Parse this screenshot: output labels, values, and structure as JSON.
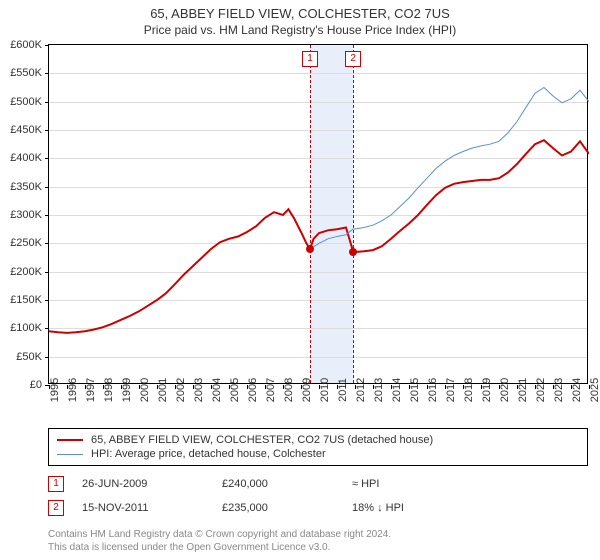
{
  "title": "65, ABBEY FIELD VIEW, COLCHESTER, CO2 7US",
  "subtitle": "Price paid vs. HM Land Registry's House Price Index (HPI)",
  "chart": {
    "type": "line",
    "x_domain": [
      1995,
      2025
    ],
    "y_domain": [
      0,
      600000
    ],
    "ytick_step": 50000,
    "yticks_labels": [
      "£0",
      "£50K",
      "£100K",
      "£150K",
      "£200K",
      "£250K",
      "£300K",
      "£350K",
      "£400K",
      "£450K",
      "£500K",
      "£550K",
      "£600K"
    ],
    "xticks": [
      1995,
      1996,
      1997,
      1998,
      1999,
      2000,
      2001,
      2002,
      2003,
      2004,
      2005,
      2006,
      2007,
      2008,
      2009,
      2010,
      2011,
      2012,
      2013,
      2014,
      2015,
      2016,
      2017,
      2018,
      2019,
      2020,
      2021,
      2022,
      2023,
      2024,
      2025
    ],
    "grid_color": "#dddddd",
    "background_color": "#ffffff",
    "border_color": "#000000",
    "band": {
      "x_start": 2009.5,
      "x_end": 2011.9,
      "color": "#e8effa"
    },
    "vlines": [
      {
        "x": 2009.5,
        "label": "1",
        "color": "#cc0000"
      },
      {
        "x": 2011.9,
        "label": "2",
        "color": "#cc0000"
      }
    ],
    "series": [
      {
        "name": "property",
        "color": "#cc0000",
        "width": 2,
        "label": "65, ABBEY FIELD VIEW, COLCHESTER, CO2 7US (detached house)",
        "points": [
          [
            1995.0,
            95000
          ],
          [
            1995.5,
            93000
          ],
          [
            1996.0,
            92000
          ],
          [
            1996.5,
            93000
          ],
          [
            1997.0,
            95000
          ],
          [
            1997.5,
            98000
          ],
          [
            1998.0,
            102000
          ],
          [
            1998.5,
            108000
          ],
          [
            1999.0,
            115000
          ],
          [
            1999.5,
            122000
          ],
          [
            2000.0,
            130000
          ],
          [
            2000.5,
            140000
          ],
          [
            2001.0,
            150000
          ],
          [
            2001.5,
            162000
          ],
          [
            2002.0,
            178000
          ],
          [
            2002.5,
            195000
          ],
          [
            2003.0,
            210000
          ],
          [
            2003.5,
            225000
          ],
          [
            2004.0,
            240000
          ],
          [
            2004.5,
            252000
          ],
          [
            2005.0,
            258000
          ],
          [
            2005.5,
            262000
          ],
          [
            2006.0,
            270000
          ],
          [
            2006.5,
            280000
          ],
          [
            2007.0,
            295000
          ],
          [
            2007.5,
            305000
          ],
          [
            2008.0,
            300000
          ],
          [
            2008.3,
            310000
          ],
          [
            2008.6,
            295000
          ],
          [
            2009.0,
            270000
          ],
          [
            2009.3,
            250000
          ],
          [
            2009.5,
            240000
          ],
          [
            2009.7,
            258000
          ],
          [
            2010.0,
            268000
          ],
          [
            2010.5,
            273000
          ],
          [
            2011.0,
            275000
          ],
          [
            2011.5,
            278000
          ],
          [
            2011.9,
            235000
          ],
          [
            2012.2,
            235000
          ],
          [
            2012.5,
            236000
          ],
          [
            2013.0,
            238000
          ],
          [
            2013.5,
            245000
          ],
          [
            2014.0,
            258000
          ],
          [
            2014.5,
            272000
          ],
          [
            2015.0,
            285000
          ],
          [
            2015.5,
            300000
          ],
          [
            2016.0,
            318000
          ],
          [
            2016.5,
            335000
          ],
          [
            2017.0,
            348000
          ],
          [
            2017.5,
            355000
          ],
          [
            2018.0,
            358000
          ],
          [
            2018.5,
            360000
          ],
          [
            2019.0,
            362000
          ],
          [
            2019.5,
            362000
          ],
          [
            2020.0,
            365000
          ],
          [
            2020.5,
            375000
          ],
          [
            2021.0,
            390000
          ],
          [
            2021.5,
            408000
          ],
          [
            2022.0,
            425000
          ],
          [
            2022.5,
            432000
          ],
          [
            2023.0,
            418000
          ],
          [
            2023.5,
            405000
          ],
          [
            2024.0,
            412000
          ],
          [
            2024.5,
            430000
          ],
          [
            2025.0,
            408000
          ]
        ],
        "markers": [
          {
            "x": 2009.5,
            "y": 240000
          },
          {
            "x": 2011.9,
            "y": 235000
          }
        ]
      },
      {
        "name": "hpi",
        "color": "#5a8fd6",
        "width": 1,
        "label": "HPI: Average price, detached house, Colchester",
        "points": [
          [
            2009.5,
            240000
          ],
          [
            2010.0,
            250000
          ],
          [
            2010.5,
            258000
          ],
          [
            2011.0,
            262000
          ],
          [
            2011.5,
            265000
          ],
          [
            2011.88,
            275000
          ],
          [
            2012.5,
            278000
          ],
          [
            2013.0,
            282000
          ],
          [
            2013.5,
            290000
          ],
          [
            2014.0,
            300000
          ],
          [
            2014.5,
            315000
          ],
          [
            2015.0,
            330000
          ],
          [
            2015.5,
            348000
          ],
          [
            2016.0,
            365000
          ],
          [
            2016.5,
            382000
          ],
          [
            2017.0,
            395000
          ],
          [
            2017.5,
            405000
          ],
          [
            2018.0,
            412000
          ],
          [
            2018.5,
            418000
          ],
          [
            2019.0,
            422000
          ],
          [
            2019.5,
            425000
          ],
          [
            2020.0,
            430000
          ],
          [
            2020.5,
            445000
          ],
          [
            2021.0,
            465000
          ],
          [
            2021.5,
            490000
          ],
          [
            2022.0,
            515000
          ],
          [
            2022.5,
            525000
          ],
          [
            2023.0,
            510000
          ],
          [
            2023.5,
            498000
          ],
          [
            2024.0,
            505000
          ],
          [
            2024.5,
            520000
          ],
          [
            2025.0,
            500000
          ]
        ]
      }
    ]
  },
  "legend_series": [
    {
      "color": "#cc0000",
      "label": "65, ABBEY FIELD VIEW, COLCHESTER, CO2 7US (detached house)"
    },
    {
      "color": "#5a8fd6",
      "label": "HPI: Average price, detached house, Colchester"
    }
  ],
  "transactions": [
    {
      "num": "1",
      "date": "26-JUN-2009",
      "price": "£240,000",
      "rel": "≈ HPI",
      "box_color": "#cc0000"
    },
    {
      "num": "2",
      "date": "15-NOV-2011",
      "price": "£235,000",
      "rel": "18% ↓ HPI",
      "box_color": "#cc0000"
    }
  ],
  "attribution_line1": "Contains HM Land Registry data © Crown copyright and database right 2024.",
  "attribution_line2": "This data is licensed under the Open Government Licence v3.0."
}
